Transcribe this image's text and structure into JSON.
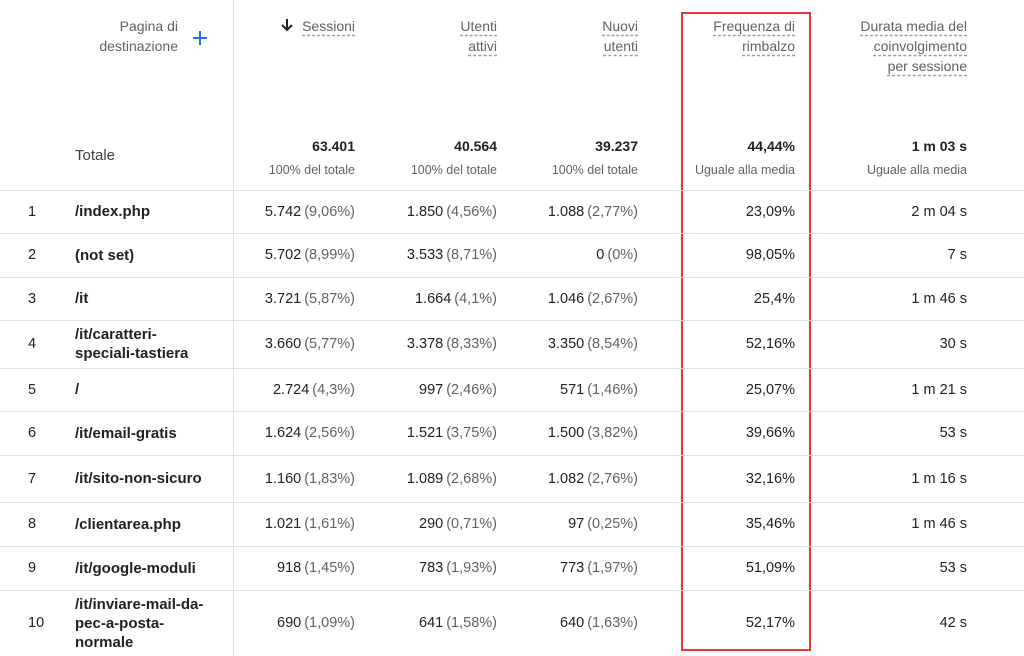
{
  "header": {
    "dimension": "Pagina di destinazione",
    "metrics": [
      "Sessioni",
      "Utenti attivi",
      "Nuovi utenti",
      "Frequenza di rimbalzo",
      "Durata media del coinvolgimento per sessione"
    ]
  },
  "totals": {
    "label": "Totale",
    "values": [
      "63.401",
      "40.564",
      "39.237",
      "44,44%",
      "1 m 03 s"
    ],
    "notes": [
      "100% del totale",
      "100% del totale",
      "100% del totale",
      "Uguale alla media",
      "Uguale alla media"
    ]
  },
  "rows": [
    {
      "rank": "1",
      "page": "/index.php",
      "cells": [
        [
          "5.742",
          "(9,06%)"
        ],
        [
          "1.850",
          "(4,56%)"
        ],
        [
          "1.088",
          "(2,77%)"
        ],
        [
          "23,09%"
        ],
        [
          "2 m 04 s"
        ]
      ]
    },
    {
      "rank": "2",
      "page": "(not set)",
      "cells": [
        [
          "5.702",
          "(8,99%)"
        ],
        [
          "3.533",
          "(8,71%)"
        ],
        [
          "0",
          "(0%)"
        ],
        [
          "98,05%"
        ],
        [
          "7 s"
        ]
      ]
    },
    {
      "rank": "3",
      "page": "/it",
      "cells": [
        [
          "3.721",
          "(5,87%)"
        ],
        [
          "1.664",
          "(4,1%)"
        ],
        [
          "1.046",
          "(2,67%)"
        ],
        [
          "25,4%"
        ],
        [
          "1 m 46 s"
        ]
      ]
    },
    {
      "rank": "4",
      "page": "/it/caratteri-speciali-tastiera",
      "cells": [
        [
          "3.660",
          "(5,77%)"
        ],
        [
          "3.378",
          "(8,33%)"
        ],
        [
          "3.350",
          "(8,54%)"
        ],
        [
          "52,16%"
        ],
        [
          "30 s"
        ]
      ]
    },
    {
      "rank": "5",
      "page": "/",
      "cells": [
        [
          "2.724",
          "(4,3%)"
        ],
        [
          "997",
          "(2,46%)"
        ],
        [
          "571",
          "(1,46%)"
        ],
        [
          "25,07%"
        ],
        [
          "1 m 21 s"
        ]
      ]
    },
    {
      "rank": "6",
      "page": "/it/email-gratis",
      "cells": [
        [
          "1.624",
          "(2,56%)"
        ],
        [
          "1.521",
          "(3,75%)"
        ],
        [
          "1.500",
          "(3,82%)"
        ],
        [
          "39,66%"
        ],
        [
          "53 s"
        ]
      ]
    },
    {
      "rank": "7",
      "page": "/it/sito-non-sicuro",
      "cells": [
        [
          "1.160",
          "(1,83%)"
        ],
        [
          "1.089",
          "(2,68%)"
        ],
        [
          "1.082",
          "(2,76%)"
        ],
        [
          "32,16%"
        ],
        [
          "1 m 16 s"
        ]
      ]
    },
    {
      "rank": "8",
      "page": "/clientarea.php",
      "cells": [
        [
          "1.021",
          "(1,61%)"
        ],
        [
          "290",
          "(0,71%)"
        ],
        [
          "97",
          "(0,25%)"
        ],
        [
          "35,46%"
        ],
        [
          "1 m 46 s"
        ]
      ]
    },
    {
      "rank": "9",
      "page": "/it/google-moduli",
      "cells": [
        [
          "918",
          "(1,45%)"
        ],
        [
          "783",
          "(1,93%)"
        ],
        [
          "773",
          "(1,97%)"
        ],
        [
          "51,09%"
        ],
        [
          "53 s"
        ]
      ]
    },
    {
      "rank": "10",
      "page": "/it/inviare-mail-da-pec-a-posta-normale",
      "cells": [
        [
          "690",
          "(1,09%)"
        ],
        [
          "641",
          "(1,58%)"
        ],
        [
          "640",
          "(1,63%)"
        ],
        [
          "52,17%"
        ],
        [
          "42 s"
        ]
      ]
    }
  ]
}
